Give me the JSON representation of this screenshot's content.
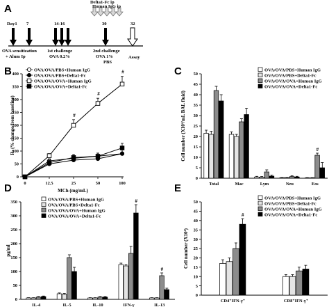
{
  "panels": {
    "a": "A",
    "b": "B",
    "c": "C",
    "d": "D",
    "e": "E"
  },
  "timeline": {
    "days": [
      "Day1",
      "7",
      "14-16",
      "30",
      "32"
    ],
    "top_label": [
      "Delta1-Fc  ip",
      "Human IgG ip"
    ],
    "sens_label": [
      "OVA sensitization",
      "+ Alum Ip"
    ],
    "ch1_label": [
      "1st challenge",
      "OVA 0.2%"
    ],
    "ch2_label": [
      "2nd challenge",
      "OVA 1%",
      "PBS"
    ],
    "assay_label": "Assay"
  },
  "colors": {
    "white": "#ffffff",
    "lightgray": "#e4e4e4",
    "gray": "#8c8c8c",
    "black": "#000000"
  },
  "chart_data": [
    {
      "id": "B",
      "type": "line",
      "xlabel": "MCh (mg/mL)",
      "ylabel": "Rₗ (% change from baseline)",
      "categories": [
        "0",
        "12.5",
        "25",
        "50",
        "100"
      ],
      "yticks": [
        "0",
        "50",
        "100",
        "150",
        "200",
        "250",
        "300",
        "350",
        "400"
      ],
      "ylim": [
        0,
        400
      ],
      "series": [
        {
          "name": "OVA/OVA/PBS+Human IgG",
          "marker": "open-circle",
          "values": [
            0,
            62,
            72,
            80,
            90
          ],
          "err": [
            0,
            8,
            10,
            12,
            15
          ]
        },
        {
          "name": "OVA/OVA/PBS+Delta1-Fc",
          "marker": "filled-circle",
          "values": [
            0,
            50,
            65,
            70,
            90
          ],
          "err": [
            0,
            8,
            10,
            12,
            15
          ]
        },
        {
          "name": "OVA/OVA/OVA+Human IgG",
          "marker": "open-square",
          "values": [
            0,
            82,
            200,
            285,
            360
          ],
          "err": [
            0,
            8,
            22,
            20,
            30
          ]
        },
        {
          "name": "OVA/OVA/OVA+Delta1-Fc",
          "marker": "filled-square",
          "values": [
            0,
            55,
            75,
            80,
            112
          ],
          "err": [
            0,
            10,
            12,
            12,
            18
          ]
        }
      ],
      "annotations": [
        "#",
        "#",
        "#"
      ]
    },
    {
      "id": "C",
      "type": "bar",
      "ylabel": "Cell number (X10⁴/mL BAL fluid)",
      "categories": [
        "Total",
        "Mac",
        "Lym",
        "Neu",
        "Eos"
      ],
      "yticks": [
        "0",
        "5",
        "10",
        "15",
        "20",
        "25",
        "30",
        "35",
        "40",
        "45",
        "50"
      ],
      "ylim": [
        0,
        50
      ],
      "series": [
        {
          "name": "OVA/OVA/PBS+Human IgG",
          "values": [
            21.5,
            21,
            0.6,
            0.3,
            0.2
          ],
          "err": [
            1.5,
            1.2,
            0.3,
            0.1,
            0.1
          ]
        },
        {
          "name": "OVA/OVA/PBS+Delta1-Fc",
          "values": [
            21,
            20,
            0.5,
            0.3,
            0.2
          ],
          "err": [
            1.5,
            1.0,
            0.3,
            0.1,
            0.1
          ]
        },
        {
          "name": "OVA/OVA/OVA+Human IgG",
          "values": [
            42,
            27,
            3,
            0.8,
            11
          ],
          "err": [
            2,
            1.5,
            1,
            0.4,
            1
          ]
        },
        {
          "name": "OVA/OVA/OVA+Delta1-Fc",
          "values": [
            37,
            30.5,
            1,
            0.6,
            5
          ],
          "err": [
            3,
            3,
            0.5,
            0.3,
            2.5
          ]
        }
      ],
      "annotations": [
        "#"
      ]
    },
    {
      "id": "D",
      "type": "bar",
      "ylabel": "pg/ml",
      "categories": [
        "IL-4",
        "IL-5",
        "IL-10",
        "IFN-γ",
        "IL-13"
      ],
      "yticks": [
        "0",
        "50",
        "100",
        "150",
        "200",
        "250",
        "300",
        "350"
      ],
      "ylim": [
        0,
        350
      ],
      "series": [
        {
          "name": "OVA/OVA/PBS+Human IgG",
          "values": [
            5,
            20,
            5,
            125,
            5
          ],
          "err": [
            1,
            3,
            1,
            5,
            1
          ]
        },
        {
          "name": "OVA/OVA/PBS+Delta1-Fc",
          "values": [
            5,
            18,
            5,
            120,
            5
          ],
          "err": [
            1,
            3,
            1,
            5,
            1
          ]
        },
        {
          "name": "OVA/OVA/OVA+Human IgG",
          "values": [
            8,
            150,
            8,
            165,
            85
          ],
          "err": [
            2,
            10,
            2,
            25,
            10
          ]
        },
        {
          "name": "OVA/OVA/OVA+Delta1-Fc",
          "values": [
            10,
            100,
            8,
            310,
            35
          ],
          "err": [
            2,
            15,
            2,
            30,
            5
          ]
        }
      ],
      "annotations": [
        "#",
        "#"
      ]
    },
    {
      "id": "E",
      "type": "bar",
      "ylabel": "Cell number (X10⁴)",
      "categories": [
        "CD4⁺IFN-γ⁺",
        "CD8⁺IFN-γ⁺"
      ],
      "yticks": [
        "0",
        "5",
        "10",
        "15",
        "20",
        "25",
        "30",
        "35",
        "40",
        "45",
        "50"
      ],
      "ylim": [
        0,
        50
      ],
      "series": [
        {
          "name": "OVA/OVA/PBS+Human IgG",
          "values": [
            17,
            10
          ],
          "err": [
            2,
            1
          ]
        },
        {
          "name": "OVA/OVA/PBS+Delta1-Fc",
          "values": [
            18,
            10
          ],
          "err": [
            2,
            1
          ]
        },
        {
          "name": "OVA/OVA/OVA+Human IgG",
          "values": [
            25,
            13
          ],
          "err": [
            3,
            2
          ]
        },
        {
          "name": "OVA/OVA/OVA+Delta1-Fc",
          "values": [
            38,
            14
          ],
          "err": [
            3,
            2
          ]
        }
      ],
      "annotations": [
        "#"
      ]
    }
  ]
}
